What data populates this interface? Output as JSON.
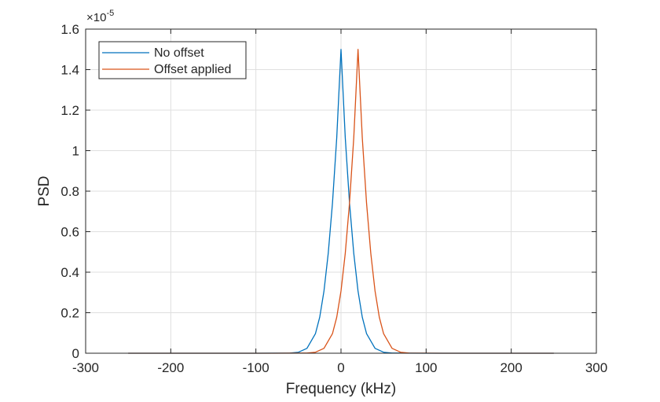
{
  "chart_data": {
    "type": "line",
    "title": "",
    "xlabel": "Frequency (kHz)",
    "ylabel": "PSD",
    "xlim": [
      -300,
      300
    ],
    "ylim": [
      0,
      1.6
    ],
    "y_exponent_label": {
      "base": "×10",
      "power": "-5"
    },
    "xticks": [
      "-300",
      "-200",
      "-100",
      "0",
      "100",
      "200",
      "300"
    ],
    "yticks": [
      "0",
      "0.2",
      "0.4",
      "0.6",
      "0.8",
      "1",
      "1.2",
      "1.4",
      "1.6"
    ],
    "grid": true,
    "legend_position": "top-left",
    "series": [
      {
        "name": "No offset",
        "color": "#0072BD",
        "x": [
          -250,
          -100,
          -60,
          -50,
          -40,
          -30,
          -25,
          -20,
          -15,
          -10,
          -5,
          0,
          5,
          10,
          15,
          20,
          25,
          30,
          40,
          50,
          60,
          100,
          250
        ],
        "y": [
          0,
          0,
          0.001,
          0.005,
          0.024,
          0.097,
          0.178,
          0.307,
          0.493,
          0.742,
          1.064,
          1.5,
          1.064,
          0.742,
          0.493,
          0.307,
          0.178,
          0.097,
          0.024,
          0.005,
          0.001,
          0,
          0
        ]
      },
      {
        "name": "Offset applied",
        "color": "#D95319",
        "x": [
          -250,
          -80,
          -40,
          -30,
          -20,
          -10,
          -5,
          0,
          5,
          10,
          15,
          20,
          25,
          30,
          35,
          40,
          45,
          50,
          60,
          70,
          80,
          120,
          250
        ],
        "y": [
          0,
          0,
          0.001,
          0.005,
          0.024,
          0.097,
          0.178,
          0.307,
          0.493,
          0.742,
          1.064,
          1.5,
          1.064,
          0.742,
          0.493,
          0.307,
          0.178,
          0.097,
          0.024,
          0.005,
          0.001,
          0,
          0
        ]
      }
    ]
  }
}
